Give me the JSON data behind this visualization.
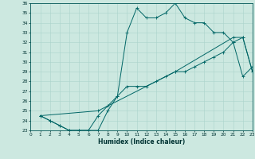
{
  "line1_x": [
    1,
    2,
    3,
    4,
    5,
    6,
    7,
    8,
    9,
    10,
    11,
    12,
    13,
    14,
    15,
    16,
    17,
    18,
    19,
    20,
    21,
    22,
    23
  ],
  "line1_y": [
    24.5,
    24.0,
    23.5,
    23.0,
    23.0,
    23.0,
    23.0,
    25.0,
    26.5,
    33.0,
    35.5,
    34.5,
    34.5,
    35.0,
    36.0,
    34.5,
    34.0,
    34.0,
    33.0,
    33.0,
    32.0,
    28.5,
    29.5
  ],
  "line2_x": [
    1,
    2,
    3,
    4,
    5,
    6,
    7,
    8,
    9,
    10,
    11,
    12,
    13,
    14,
    15,
    16,
    17,
    18,
    19,
    20,
    21,
    22,
    23
  ],
  "line2_y": [
    24.5,
    24.0,
    23.5,
    23.0,
    23.0,
    23.0,
    24.5,
    25.5,
    26.5,
    27.5,
    27.5,
    27.5,
    28.0,
    28.5,
    29.0,
    29.0,
    29.5,
    30.0,
    30.5,
    31.0,
    32.0,
    32.5,
    29.0
  ],
  "line3_x": [
    1,
    7,
    15,
    21,
    22,
    23
  ],
  "line3_y": [
    24.5,
    25.0,
    29.0,
    32.5,
    32.5,
    29.0
  ],
  "bg_color": "#cce8e0",
  "grid_color": "#aad4cc",
  "line_color": "#006666",
  "xlim": [
    0,
    23
  ],
  "ylim": [
    23,
    36
  ],
  "xticks": [
    0,
    1,
    2,
    3,
    4,
    5,
    6,
    7,
    8,
    9,
    10,
    11,
    12,
    13,
    14,
    15,
    16,
    17,
    18,
    19,
    20,
    21,
    22,
    23
  ],
  "yticks": [
    23,
    24,
    25,
    26,
    27,
    28,
    29,
    30,
    31,
    32,
    33,
    34,
    35,
    36
  ],
  "xlabel": "Humidex (Indice chaleur)",
  "xlabel_fontsize": 5.5,
  "tick_fontsize": 4.2,
  "lw": 0.7,
  "marker_size": 2.5
}
